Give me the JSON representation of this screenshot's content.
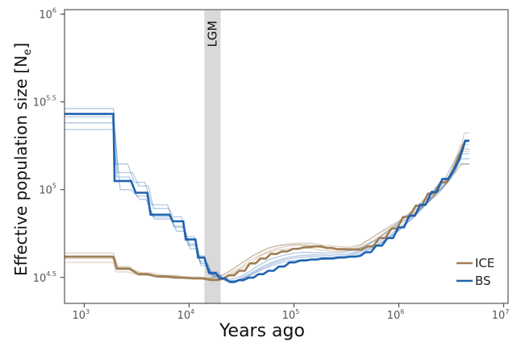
{
  "chart_data": {
    "type": "line",
    "title": "",
    "xlabel": "Years ago",
    "ylabel": {
      "main": "Effective population size [N",
      "sub": "e",
      "end": "]"
    },
    "x_scale": "log",
    "y_scale": "log",
    "xlim": [
      650,
      11000000
    ],
    "ylim": [
      22500,
      1060000
    ],
    "x_ticks": [
      {
        "value": 1000,
        "base": "10",
        "exp": "3"
      },
      {
        "value": 10000,
        "base": "10",
        "exp": "4"
      },
      {
        "value": 100000,
        "base": "10",
        "exp": "5"
      },
      {
        "value": 1000000,
        "base": "10",
        "exp": "6"
      },
      {
        "value": 10000000,
        "base": "10",
        "exp": "7"
      }
    ],
    "y_ticks": [
      {
        "value": 31623,
        "base": "10",
        "exp": "4.5"
      },
      {
        "value": 100000,
        "base": "10",
        "exp": "5"
      },
      {
        "value": 316228,
        "base": "10",
        "exp": "5.5"
      },
      {
        "value": 1000000,
        "base": "10",
        "exp": "6"
      }
    ],
    "shaded_band": {
      "label": "LGM",
      "x_from": 14000,
      "x_to": 20000,
      "color": "#d9d9d9"
    },
    "grid": false,
    "legend": {
      "placement": "bottom-right"
    },
    "series": [
      {
        "name": "ICE",
        "color": "#a07d55",
        "x": [
          650,
          1900,
          2050,
          2700,
          3300,
          4000,
          4900,
          6000,
          7400,
          9100,
          11000,
          13500,
          16000,
          18500,
          21000,
          24000,
          27000,
          30000,
          34000,
          38000,
          43000,
          48000,
          54000,
          60000,
          68000,
          77000,
          87000,
          98000,
          110000,
          125000,
          140000,
          160000,
          180000,
          205000,
          230000,
          260000,
          300000,
          340000,
          390000,
          440000,
          500000,
          570000,
          650000,
          740000,
          850000,
          960000,
          1100000,
          1250000,
          1450000,
          1650000,
          1900000,
          2150000,
          2500000,
          2850000,
          3300000,
          3800000,
          4300000,
          4700000
        ],
        "y": [
          41500,
          41500,
          35500,
          35500,
          33000,
          33000,
          32000,
          32000,
          31500,
          31500,
          31200,
          31200,
          30600,
          30600,
          31000,
          32500,
          32500,
          34500,
          34500,
          38000,
          38000,
          40500,
          40500,
          43000,
          43000,
          44500,
          44500,
          46000,
          46000,
          47000,
          47000,
          47500,
          47500,
          46500,
          46500,
          45800,
          45800,
          45600,
          45600,
          45500,
          47500,
          47500,
          53000,
          53000,
          60000,
          60000,
          70000,
          70000,
          81000,
          81000,
          95000,
          95000,
          110000,
          110000,
          130000,
          160000,
          190000,
          190000
        ]
      },
      {
        "name": "BS",
        "color": "#1f63b0",
        "x": [
          650,
          1900,
          1950,
          2800,
          3100,
          4000,
          4300,
          6500,
          7000,
          8800,
          9300,
          11500,
          12200,
          14000,
          15500,
          18000,
          19500,
          22000,
          24500,
          27000,
          30000,
          33000,
          37000,
          41000,
          46000,
          51000,
          57000,
          64000,
          72000,
          81000,
          91000,
          102000,
          115000,
          130000,
          145000,
          165000,
          185000,
          210000,
          235000,
          265000,
          300000,
          340000,
          385000,
          430000,
          480000,
          540000,
          610000,
          690000,
          780000,
          880000,
          990000,
          1120000,
          1260000,
          1420000,
          1600000,
          1800000,
          2050000,
          2300000,
          2600000,
          2950000,
          3350000,
          3800000,
          4300000,
          4700000
        ],
        "y": [
          270000,
          270000,
          112000,
          112000,
          96000,
          96000,
          72000,
          72000,
          66000,
          66000,
          52000,
          52000,
          41000,
          41000,
          33500,
          33500,
          31200,
          31200,
          29800,
          29800,
          30500,
          30500,
          31500,
          31500,
          33000,
          33000,
          34500,
          34500,
          36500,
          36500,
          38500,
          38500,
          39500,
          39500,
          40000,
          40000,
          40500,
          40500,
          40500,
          41000,
          41000,
          41500,
          41500,
          42000,
          44000,
          44000,
          48000,
          48000,
          53000,
          53000,
          61000,
          61000,
          71000,
          71000,
          82000,
          82000,
          97000,
          97000,
          115000,
          115000,
          130000,
          150000,
          190000,
          190000
        ]
      }
    ],
    "replicates": {
      "ICE": [
        {
          "x": [
            650,
            1900,
            2100,
            2700,
            3200,
            4000,
            5000,
            7500,
            9000,
            13000,
            15500,
            22000,
            26000,
            34000,
            40000,
            52000,
            62000,
            80000,
            100000,
            150000,
            200000,
            330000,
            440000,
            600000,
            900000,
            1300000,
            1800000,
            2500000,
            3200000,
            4000000,
            4700000
          ],
          "y": [
            43500,
            43500,
            36500,
            36500,
            33500,
            33500,
            32500,
            32500,
            31800,
            31800,
            31200,
            32800,
            35000,
            39000,
            42000,
            45000,
            47000,
            48500,
            49500,
            49500,
            48000,
            47000,
            48500,
            55000,
            63000,
            72000,
            85000,
            100000,
            125000,
            165000,
            165000
          ]
        },
        {
          "x": [
            650,
            1900,
            2000,
            2600,
            3400,
            4200,
            5500,
            7200,
            9500,
            12500,
            16500,
            21000,
            25000,
            31000,
            38000,
            46000,
            58000,
            72000,
            95000,
            140000,
            190000,
            280000,
            400000,
            560000,
            800000,
            1200000,
            1700000,
            2400000,
            3100000,
            4000000,
            4700000
          ],
          "y": [
            38500,
            38500,
            34000,
            34000,
            32500,
            32500,
            31500,
            31500,
            31000,
            31000,
            30500,
            31500,
            33500,
            36000,
            39500,
            42000,
            44000,
            45500,
            46000,
            46500,
            45000,
            44500,
            46000,
            51000,
            59000,
            68000,
            80000,
            95000,
            115000,
            140000,
            140000
          ]
        },
        {
          "x": [
            650,
            1950,
            2100,
            2900,
            3600,
            4500,
            5800,
            7800,
            10500,
            14000,
            18000,
            23000,
            28000,
            35000,
            43000,
            53000,
            66000,
            85000,
            110000,
            160000,
            230000,
            340000,
            470000,
            650000,
            950000,
            1400000,
            2000000,
            2700000,
            3500000,
            4200000,
            4700000
          ],
          "y": [
            40500,
            40500,
            35000,
            35000,
            33500,
            33500,
            32200,
            32200,
            31400,
            31400,
            30900,
            32000,
            34000,
            37000,
            40000,
            43500,
            46000,
            47500,
            48500,
            48000,
            46500,
            45500,
            47000,
            53000,
            62000,
            73000,
            88000,
            106000,
            128000,
            210000,
            210000
          ]
        },
        {
          "x": [
            650,
            1850,
            2000,
            2500,
            3100,
            3900,
            4800,
            6500,
            8500,
            11500,
            15000,
            20000,
            24000,
            30000,
            37000,
            45000,
            56000,
            70000,
            90000,
            130000,
            180000,
            260000,
            380000,
            520000,
            750000,
            1100000,
            1600000,
            2200000,
            3000000,
            3900000,
            4700000
          ],
          "y": [
            42000,
            42000,
            36000,
            36000,
            33200,
            33200,
            32300,
            32300,
            31600,
            31600,
            31100,
            32300,
            34300,
            37500,
            40500,
            43500,
            46500,
            48000,
            48800,
            48300,
            46800,
            46000,
            46500,
            52000,
            60000,
            69000,
            81000,
            98000,
            120000,
            180000,
            180000
          ]
        }
      ],
      "BS": [
        {
          "x": [
            650,
            1900,
            2100,
            2900,
            3300,
            4100,
            4600,
            6400,
            7200,
            8700,
            9800,
            11800,
            12800,
            15000,
            17000,
            20000,
            23000,
            28000,
            33000,
            40000,
            50000,
            65000,
            85000,
            110000,
            150000,
            220000,
            330000,
            480000,
            700000,
            1000000,
            1500000,
            2200000,
            3200000,
            4000000,
            4700000
          ],
          "y": [
            290000,
            290000,
            125000,
            125000,
            105000,
            105000,
            78000,
            78000,
            62000,
            62000,
            48000,
            48000,
            38000,
            38000,
            32000,
            32000,
            30200,
            30200,
            31800,
            33800,
            36500,
            39000,
            41000,
            42000,
            42500,
            42300,
            43000,
            46000,
            52000,
            60000,
            75000,
            95000,
            125000,
            170000,
            170000
          ]
        },
        {
          "x": [
            650,
            1950,
            2200,
            2800,
            3400,
            3900,
            4700,
            6700,
            7600,
            9200,
            10300,
            12200,
            13000,
            14800,
            16800,
            19500,
            22500,
            27000,
            32000,
            39000,
            48000,
            62000,
            80000,
            105000,
            140000,
            200000,
            300000,
            450000,
            650000,
            950000,
            1400000,
            2000000,
            2900000,
            3800000,
            4700000
          ],
          "y": [
            220000,
            220000,
            100000,
            100000,
            88000,
            88000,
            68000,
            68000,
            58000,
            58000,
            46000,
            46000,
            37000,
            37000,
            32500,
            32500,
            30000,
            30000,
            30900,
            32600,
            34800,
            37000,
            38800,
            39600,
            40100,
            40100,
            41000,
            43500,
            49000,
            57000,
            70000,
            88000,
            110000,
            140000,
            140000
          ]
        },
        {
          "x": [
            650,
            1850,
            2000,
            2600,
            3000,
            3800,
            4400,
            6200,
            7000,
            8500,
            9500,
            11200,
            12000,
            13800,
            15800,
            18500,
            21500,
            26000,
            31000,
            37000,
            46000,
            58000,
            76000,
            100000,
            135000,
            190000,
            290000,
            420000,
            620000,
            900000,
            1350000,
            1950000,
            2800000,
            3700000,
            4700000
          ],
          "y": [
            260000,
            260000,
            140000,
            140000,
            110000,
            110000,
            82000,
            82000,
            70000,
            70000,
            54000,
            54000,
            42000,
            42000,
            34000,
            34000,
            31000,
            31000,
            32000,
            34000,
            37000,
            40000,
            42000,
            43500,
            44000,
            43500,
            43800,
            46000,
            52000,
            62000,
            76000,
            94000,
            118000,
            160000,
            160000
          ]
        },
        {
          "x": [
            650,
            1900,
            2050,
            2700,
            3200,
            4000,
            4500,
            6600,
            7300,
            9000,
            10000,
            11900,
            12600,
            14400,
            16200,
            19000,
            22000,
            27500,
            32500,
            39000,
            49000,
            63000,
            82000,
            108000,
            145000,
            210000,
            320000,
            470000,
            680000,
            980000,
            1450000,
            2100000,
            3000000,
            3900000,
            4700000
          ],
          "y": [
            240000,
            240000,
            118000,
            118000,
            92000,
            92000,
            70000,
            70000,
            61000,
            61000,
            49000,
            49000,
            39000,
            39000,
            32800,
            32800,
            30400,
            30400,
            31200,
            33000,
            35500,
            38000,
            40000,
            41000,
            41500,
            41300,
            42000,
            45000,
            50000,
            58000,
            72000,
            90000,
            112000,
            150000,
            150000
          ]
        }
      ]
    }
  }
}
